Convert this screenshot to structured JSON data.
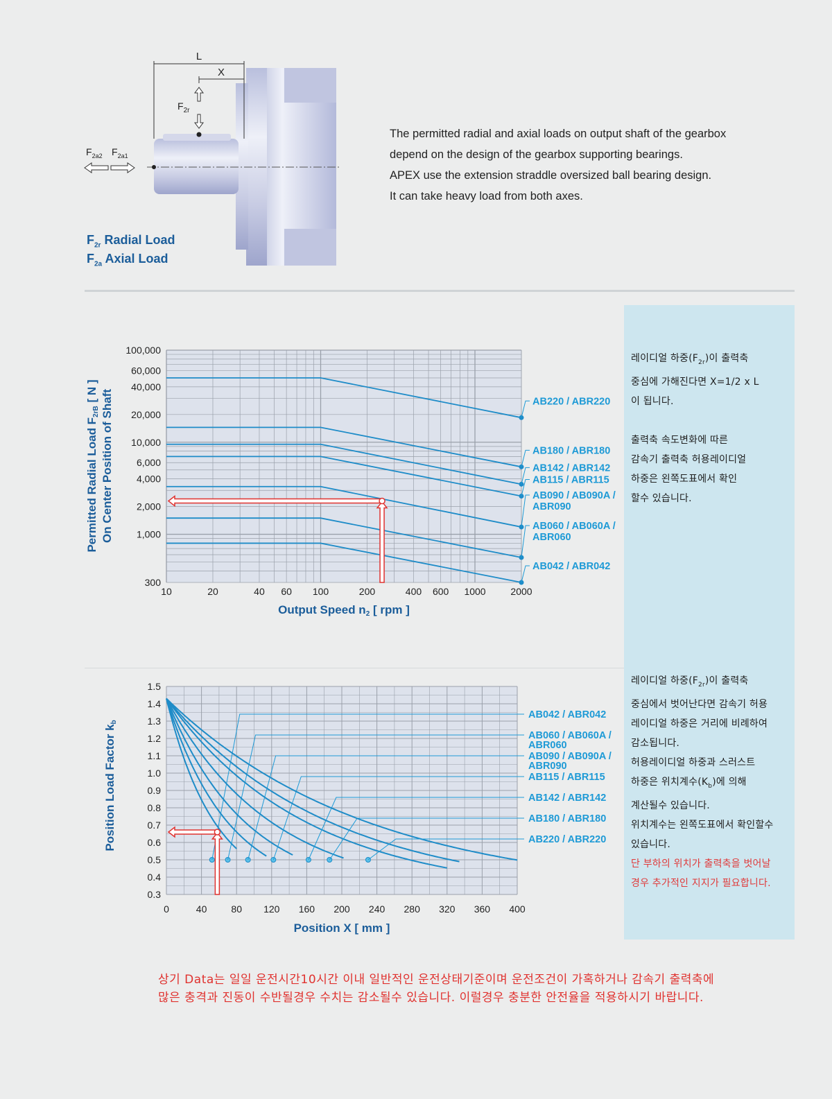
{
  "diagram": {
    "label_L": "L",
    "label_X": "X",
    "label_F2r": "F",
    "label_F2r_sub": "2r",
    "label_F2a2": "F",
    "label_F2a2_sub": "2a2",
    "label_F2a1": "F",
    "label_F2a1_sub": "2a1",
    "radial_legend": "Radial Load",
    "radial_legend_sub": "2r",
    "axial_legend": "Axial Load",
    "axial_legend_sub": "2a",
    "legend_F": "F"
  },
  "intro": [
    "The permitted radial and axial loads on output shaft of the gearbox",
    "depend on the design of the gearbox supporting bearings.",
    "APEX use the extension straddle oversized ball bearing design.",
    "It can take heavy load from both axes."
  ],
  "notes": {
    "top": {
      "line1_pre": "레이디얼  하중(F",
      "line1_sub": "2r",
      "line1_post": ")이  출력축",
      "line2": "중심에  가해진다면  X=1/2  x  L",
      "line3": "이  됩니다.",
      "line4": "출력축  속도변화에  따른",
      "line5": "감속기  출력축  허용레이디얼",
      "line6": "하중은  왼쪽도표에서  확인",
      "line7": "할수  있습니다."
    },
    "bottom": {
      "line1_pre": "레이디얼  하중(F",
      "line1_sub": "2r",
      "line1_post": ")이  출력축",
      "line2": "중심에서  벗어난다면  감속기  허용",
      "line3": "레이디얼  하중은  거리에  비례하여",
      "line4": "감소됩니다.",
      "line5": "허용레이디얼  하중과  스러스트",
      "line6_pre": "하중은  위치계수(K",
      "line6_sub": "b",
      "line6_post": ")에  의해",
      "line7": "계산될수  있습니다.",
      "line8": "위치계수는  왼쪽도표에서  확인할수",
      "line9": "있습니다.",
      "red1": "단  부하의  위치가  출력축을  벗어날",
      "red2": "경우  추가적인  지지가  필요합니다."
    }
  },
  "footer": [
    "상기  Data는  일일  운전시간10시간  이내  일반적인  운전상태기준이며  운전조건이  가혹하거나  감속기  출력축에",
    "많은  충격과  진동이  수반될경우  수치는  감소될수  있습니다.  이럴경우  충분한  안전율을  적용하시기  바랍니다."
  ],
  "colors": {
    "series": "#1e8cc8",
    "label": "#1e9ad6",
    "axis_title": "#1b5d9a",
    "arrow": "#e0322f",
    "plot_bg": "#dde2ec"
  },
  "chart_data": [
    {
      "type": "line",
      "title": "",
      "xlabel": "Output Speed n",
      "xlabel_sub": "2",
      "xlabel_post": " [ rpm ]",
      "ylabel_line1_pre": "Permitted Radial Load F",
      "ylabel_line1_sub": "2rB",
      "ylabel_line1_post": " [ N ]",
      "ylabel_line2": "On Center Position of Shaft",
      "x_scale": "log",
      "y_scale": "log",
      "xlim": [
        10,
        2000
      ],
      "ylim": [
        300,
        100000
      ],
      "xticks": [
        10,
        20,
        40,
        60,
        100,
        200,
        400,
        600,
        1000,
        2000
      ],
      "xtick_labels": [
        "10",
        "20",
        "40",
        "60",
        "100",
        "200",
        "400",
        "600",
        "1000",
        "2000"
      ],
      "yticks": [
        300,
        1000,
        2000,
        4000,
        6000,
        10000,
        20000,
        40000,
        60000,
        100000
      ],
      "ytick_labels": [
        "300",
        "1,000",
        "2,000",
        "4,000",
        "6,000",
        "10,000",
        "20,000",
        "40,000",
        "60,000",
        "100,000"
      ],
      "grid": true,
      "series": [
        {
          "name": "AB220 / ABR220",
          "label_lines": [
            "AB220 / ABR220"
          ],
          "x": [
            10,
            100,
            2000
          ],
          "y": [
            50000,
            50000,
            18500
          ]
        },
        {
          "name": "AB180 / ABR180",
          "label_lines": [
            "AB180 / ABR180"
          ],
          "x": [
            10,
            100,
            2000
          ],
          "y": [
            14500,
            14500,
            5400
          ]
        },
        {
          "name": "AB142 / ABR142",
          "label_lines": [
            "AB142 / ABR142"
          ],
          "x": [
            10,
            100,
            2000
          ],
          "y": [
            9500,
            9500,
            3500
          ]
        },
        {
          "name": "AB115 / ABR115",
          "label_lines": [
            "AB115 / ABR115"
          ],
          "x": [
            10,
            100,
            2000
          ],
          "y": [
            7000,
            7000,
            2600
          ]
        },
        {
          "name": "AB090 / AB090A / ABR090",
          "label_lines": [
            "AB090 / AB090A /",
            "ABR090"
          ],
          "x": [
            10,
            100,
            2000
          ],
          "y": [
            3300,
            3300,
            1200
          ]
        },
        {
          "name": "AB060 / AB060A / ABR060",
          "label_lines": [
            "AB060 / AB060A /",
            "ABR060"
          ],
          "x": [
            10,
            100,
            2000
          ],
          "y": [
            1500,
            1500,
            560
          ]
        },
        {
          "name": "AB042 / ABR042",
          "label_lines": [
            "AB042 / ABR042"
          ],
          "x": [
            10,
            100,
            2000
          ],
          "y": [
            800,
            800,
            300
          ]
        }
      ],
      "annotation_example": {
        "x": 250,
        "y": 2300
      }
    },
    {
      "type": "line",
      "title": "",
      "xlabel": "Position X [ mm ]",
      "ylabel_pre": "Position Load Factor k",
      "ylabel_sub": "b",
      "xlim": [
        0,
        400
      ],
      "ylim": [
        0.3,
        1.5
      ],
      "xticks": [
        0,
        40,
        80,
        120,
        160,
        200,
        240,
        280,
        320,
        360,
        400
      ],
      "yticks": [
        0.3,
        0.4,
        0.5,
        0.6,
        0.7,
        0.8,
        0.9,
        1.0,
        1.1,
        1.2,
        1.3,
        1.4,
        1.5
      ],
      "ytick_labels": [
        "0.3",
        "0.4",
        "0.5",
        "0.6",
        "0.7",
        "0.8",
        "0.9",
        "1.0",
        "1.1",
        "1.2",
        "1.3",
        "1.4",
        "1.5"
      ],
      "grid": true,
      "series": [
        {
          "name": "AB042 / ABR042",
          "label_lines": [
            "AB042 / ABR042"
          ],
          "x0": 55,
          "end_x": 80,
          "label_y": 1.34,
          "marker": [
            52,
            0.5
          ]
        },
        {
          "name": "AB060 / AB060A / ABR060",
          "label_lines": [
            "AB060 / AB060A /",
            "ABR060"
          ],
          "x0": 70,
          "end_x": 115,
          "label_y": 1.22,
          "marker": [
            70,
            0.5
          ]
        },
        {
          "name": "AB090 / AB090A / ABR090",
          "label_lines": [
            "AB090 / AB090A /",
            "ABR090"
          ],
          "x0": 90,
          "end_x": 145,
          "label_y": 1.1,
          "marker": [
            93,
            0.5
          ]
        },
        {
          "name": "AB115 / ABR115",
          "label_lines": [
            "AB115 / ABR115"
          ],
          "x0": 120,
          "end_x": 202,
          "label_y": 0.98,
          "marker": [
            122,
            0.5
          ]
        },
        {
          "name": "AB142 / ABR142",
          "label_lines": [
            "AB142 / ABR142"
          ],
          "x0": 160,
          "end_x": 320,
          "label_y": 0.86,
          "marker": [
            162,
            0.5
          ]
        },
        {
          "name": "AB180 / ABR180",
          "label_lines": [
            "AB180 / ABR180"
          ],
          "x0": 187,
          "end_x": 335,
          "label_y": 0.74,
          "marker": [
            186,
            0.5
          ]
        },
        {
          "name": "AB220 / ABR220",
          "label_lines": [
            "AB220 / ABR220"
          ],
          "x0": 230,
          "end_x": 400,
          "label_y": 0.62,
          "marker": [
            230,
            0.5
          ]
        }
      ],
      "annotation_example": {
        "x": 58,
        "y": 0.66
      }
    }
  ]
}
